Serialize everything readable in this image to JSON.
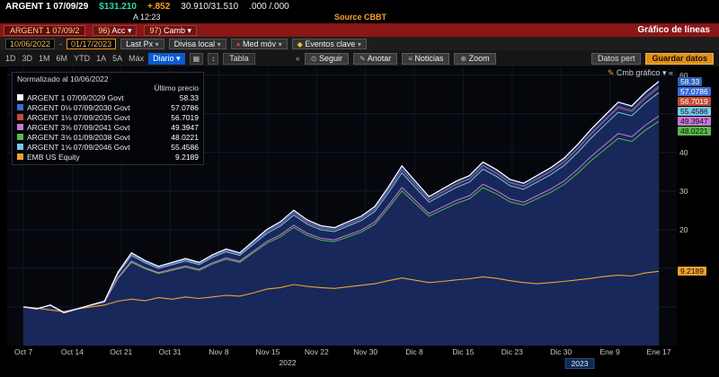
{
  "quote_bar": {
    "ticker": "ARGENT 1 07/09/29",
    "price": "$131.210",
    "change": "+.852",
    "bid_ask": "30.910/31.510",
    "extra": ".000 /.000",
    "time": "A 12:23",
    "source": "Source CBBT"
  },
  "menu_bar": {
    "security": "ARGENT 1 07/09/2",
    "actions_num": "96)",
    "actions_label": "Acc",
    "edit_num": "97)",
    "edit_label": "Camb",
    "title": "Gráfico de líneas"
  },
  "toolbar": {
    "date_from": "10/06/2022",
    "date_sep": "-",
    "date_to": "01/17/2023",
    "price_field": "Last Px",
    "currency": "Divisa local",
    "mov_avg": "Med móv",
    "key_events": "Eventos clave"
  },
  "range_bar": {
    "ranges": [
      "1D",
      "3D",
      "1M",
      "6M",
      "YTD",
      "1A",
      "5A",
      "Máx"
    ],
    "period": "Diario",
    "table_label": "Tabla",
    "collapse": "«",
    "actions": [
      "Seguir",
      "Anotar",
      "Noticias",
      "Zoom"
    ],
    "action_icons": [
      "⊙",
      "✎",
      "≡",
      "⊕"
    ],
    "add_data": "Datos pert",
    "save_data": "Guardar datos"
  },
  "chart_header": {
    "edit_chart": "Cmb gráfico"
  },
  "icons": {
    "dropdown": "▾",
    "pencil": "✎",
    "grid": "▦",
    "updown": "↕",
    "dot": "●",
    "diamond": "◆",
    "collapse": "«"
  },
  "legend": {
    "title": "Normalizado al 10/06/2022",
    "subtitle": "Último precio",
    "items": [
      {
        "name": "ARGENT 1 07/09/2029 Govt",
        "value": "58.33",
        "color": "#ffffff",
        "badge_bg": "#2e62b8",
        "badge_fg": "#ffffff",
        "group": "bond"
      },
      {
        "name": "ARGENT 0⅛ 07/09/2030 Govt",
        "value": "57.0786",
        "color": "#3b6bd6",
        "badge_bg": "#3b6bd6",
        "badge_fg": "#ffffff",
        "group": "bond"
      },
      {
        "name": "ARGENT 1⅛ 07/09/2035 Govt",
        "value": "56.7019",
        "color": "#c64a32",
        "badge_bg": "#c64a32",
        "badge_fg": "#ffffff",
        "group": "bond"
      },
      {
        "name": "ARGENT 3⅝ 07/09/2041 Govt",
        "value": "49.3947",
        "color": "#c877d8",
        "badge_bg": "#c877d8",
        "badge_fg": "#111111",
        "group": "bond"
      },
      {
        "name": "ARGENT 3⅝ 01/09/2038 Govt",
        "value": "48.0221",
        "color": "#58b947",
        "badge_bg": "#58b947",
        "badge_fg": "#111111",
        "group": "bond"
      },
      {
        "name": "ARGENT 1⅝ 07/09/2046 Govt",
        "value": "55.4586",
        "color": "#79c7e8",
        "badge_bg": "#79c7e8",
        "badge_fg": "#111111",
        "group": "bond"
      },
      {
        "name": "EMB US Equity",
        "value": "9.2189",
        "color": "#f0a22e",
        "badge_bg": "#f0a22e",
        "badge_fg": "#111111",
        "group": "benchmark"
      }
    ]
  },
  "y_axis": {
    "ticks": [
      60,
      40,
      30,
      20
    ]
  },
  "x_axis": {
    "labels": [
      "Oct 7",
      "Oct 14",
      "Oct 21",
      "Oct 31",
      "Nov 8",
      "Nov 15",
      "Nov 22",
      "Nov 30",
      "Dic 8",
      "Dic 15",
      "Dic 23",
      "Dic 30",
      "Ene 9",
      "Ene 17"
    ],
    "year_left": "2022",
    "year_right": "2023"
  },
  "chart_data": {
    "type": "line",
    "title": "Normalizado al 10/06/2022",
    "x_labels": [
      "Oct 7",
      "Oct 14",
      "Oct 21",
      "Oct 31",
      "Nov 8",
      "Nov 15",
      "Nov 22",
      "Nov 30",
      "Dic 8",
      "Dic 15",
      "Dic 23",
      "Dic 30",
      "Ene 9",
      "Ene 17"
    ],
    "ylim": [
      -10,
      62
    ],
    "grid": true,
    "fill_color": "#18285a",
    "base_last": 58.33,
    "base_values": [
      0,
      -0.5,
      0.5,
      -1.5,
      -0.5,
      0.5,
      1.5,
      9,
      14,
      12,
      10.5,
      11.5,
      12.5,
      11.5,
      13.5,
      15,
      14,
      17,
      20,
      22,
      25,
      22.5,
      21,
      20.5,
      22,
      23.5,
      26,
      31,
      36.5,
      32.5,
      28.5,
      30.5,
      32.5,
      34,
      37.5,
      35.5,
      33,
      32,
      34,
      36,
      38.5,
      42,
      46,
      49.5,
      53,
      52,
      55.5,
      58.33
    ],
    "series": [
      {
        "name": "ARGENT 1 07/09/2029 Govt",
        "color": "#ffffff",
        "last": 58.33
      },
      {
        "name": "ARGENT 0⅛ 07/09/2030 Govt",
        "color": "#3b6bd6",
        "last": 57.0786
      },
      {
        "name": "ARGENT 1⅛ 07/09/2035 Govt",
        "color": "#c64a32",
        "last": 56.7019
      },
      {
        "name": "ARGENT 3⅝ 07/09/2041 Govt",
        "color": "#c877d8",
        "last": 49.3947
      },
      {
        "name": "ARGENT 3⅝ 01/09/2038 Govt",
        "color": "#58b947",
        "last": 48.0221
      },
      {
        "name": "ARGENT 1⅝ 07/09/2046 Govt",
        "color": "#79c7e8",
        "last": 55.4586
      }
    ],
    "benchmark": {
      "name": "EMB US Equity",
      "color": "#f0a22e",
      "last": 9.2189,
      "values": [
        0,
        -0.3,
        -0.8,
        -1.2,
        -0.5,
        0,
        0.5,
        1.5,
        2,
        1.6,
        2.4,
        2,
        2.6,
        2.2,
        2.6,
        3,
        2.8,
        3.6,
        4.6,
        5,
        5.8,
        5.3,
        5,
        4.8,
        5.2,
        5.6,
        6,
        6.8,
        7.5,
        6.9,
        6.3,
        6.6,
        7,
        7.3,
        7.8,
        7.4,
        6.8,
        6.3,
        6,
        6.3,
        6.6,
        7,
        7.4,
        7.9,
        8.2,
        8,
        8.8,
        9.2189
      ]
    }
  }
}
